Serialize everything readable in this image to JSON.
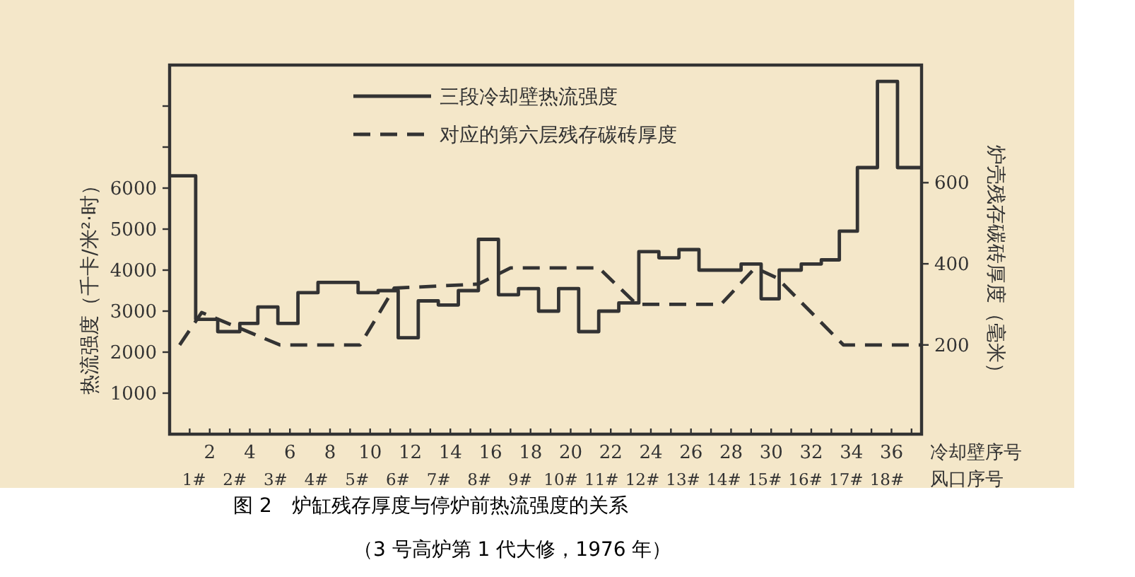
{
  "chart_data": {
    "type": "step",
    "title": "图 2　炉缸残存厚度与停炉前热流强度的关系",
    "subtitle": "（3 号高炉第 1 代大修，1976 年）",
    "ylabel": "热流强度（千卡/米²·时）",
    "y2label": "炉壳残存碳砖厚度（毫米）",
    "xlabel": "冷却壁序号",
    "x2label": "风口序号",
    "legend": "top",
    "xlim": [
      0,
      37.5
    ],
    "ylim": [
      0,
      9000
    ],
    "y2lim": [
      -20,
      890
    ],
    "xticks": [
      {
        "value": 1,
        "label": null
      },
      2,
      {
        "value": 3,
        "label": null
      },
      4,
      {
        "value": 5,
        "label": null
      },
      6,
      {
        "value": 7,
        "label": null
      },
      8,
      {
        "value": 9,
        "label": null
      },
      10,
      {
        "value": 11,
        "label": null
      },
      12,
      {
        "value": 13,
        "label": null
      },
      14,
      {
        "value": 15,
        "label": null
      },
      16,
      {
        "value": 17,
        "label": null
      },
      18,
      {
        "value": 19,
        "label": null
      },
      20,
      {
        "value": 21,
        "label": null
      },
      22,
      {
        "value": 23,
        "label": null
      },
      24,
      {
        "value": 25,
        "label": null
      },
      26,
      {
        "value": 27,
        "label": null
      },
      28,
      {
        "value": 29,
        "label": null
      },
      30,
      {
        "value": 31,
        "label": null
      },
      32,
      {
        "value": 33,
        "label": null
      },
      34,
      {
        "value": 35,
        "label": null
      },
      36,
      {
        "value": 37,
        "label": null
      }
    ],
    "x2lim": [
      0.4,
      18.85
    ],
    "x2ticks": [
      {
        "value": 1,
        "label": "1#"
      },
      {
        "value": 2,
        "label": "2#"
      },
      {
        "value": 3,
        "label": "3#"
      },
      {
        "value": 4,
        "label": "4#"
      },
      {
        "value": 5,
        "label": "5#"
      },
      {
        "value": 6,
        "label": "6#"
      },
      {
        "value": 7,
        "label": "7#"
      },
      {
        "value": 8,
        "label": "8#"
      },
      {
        "value": 9,
        "label": "9#"
      },
      {
        "value": 10,
        "label": "10#"
      },
      {
        "value": 11,
        "label": "11#"
      },
      {
        "value": 12,
        "label": "12#"
      },
      {
        "value": 13,
        "label": "13#"
      },
      {
        "value": 14,
        "label": "14#"
      },
      {
        "value": 15,
        "label": "15#"
      },
      {
        "value": 16,
        "label": "16#"
      },
      {
        "value": 17,
        "label": "17#"
      },
      {
        "value": 18,
        "label": "18#"
      }
    ],
    "yticks": [
      1000,
      2000,
      3000,
      4000,
      5000,
      6000,
      {
        "value": 7000,
        "label": null
      },
      {
        "value": 8000,
        "label": null
      }
    ],
    "y2ticks": [
      200,
      400,
      600
    ],
    "series": [
      {
        "name": "三段冷却壁热流强度",
        "color": "#333333",
        "line_style": "solid",
        "x": [
          0,
          1.3,
          2.4,
          3.5,
          4.4,
          5.4,
          6.4,
          7.4,
          9.4,
          10.4,
          11.4,
          12.4,
          13.4,
          14.4,
          15.4,
          16.4,
          17.4,
          18.4,
          19.4,
          20.4,
          21.4,
          22.4,
          23.4,
          24.4,
          25.4,
          26.4,
          28.5,
          29.5,
          30.4,
          31.5,
          32.5,
          33.4,
          34.3,
          35.3,
          36.3,
          37.5
        ],
        "values": [
          6300,
          2800,
          2500,
          2700,
          3100,
          2700,
          3450,
          3700,
          3450,
          3500,
          2350,
          3250,
          3150,
          3500,
          4750,
          3400,
          3550,
          3000,
          3550,
          2500,
          3000,
          3200,
          4450,
          4300,
          4500,
          4000,
          4150,
          3300,
          4000,
          4150,
          4250,
          4950,
          6500,
          8600,
          6500,
          6500
        ]
      },
      {
        "name": "对应的第六层残存碳砖厚度",
        "type": "line",
        "axis": "y2",
        "color": "#333333",
        "line_style": "dashed",
        "x": [
          0.5,
          1.6,
          5.5,
          9.5,
          11.2,
          15.4,
          17,
          21.4,
          23.3,
          27.5,
          29.2,
          30.3,
          33.6,
          37.5
        ],
        "values": [
          200,
          280,
          200,
          200,
          340,
          350,
          390,
          390,
          300,
          300,
          390,
          365,
          200,
          200
        ]
      }
    ]
  }
}
